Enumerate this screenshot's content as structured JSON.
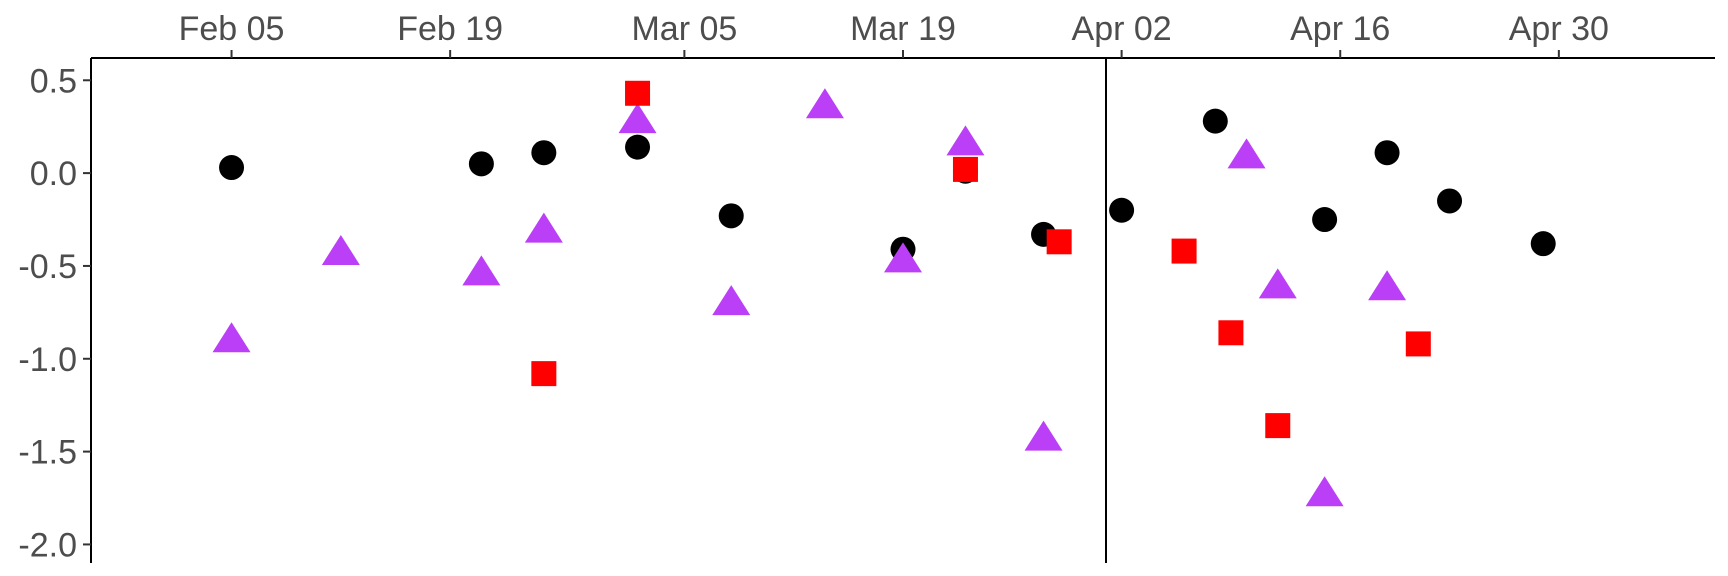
{
  "chart_data": {
    "type": "scatter",
    "title": "",
    "xlabel": "",
    "ylabel": "",
    "x_axis": {
      "position": "top",
      "type": "date",
      "domain": [
        "2024-01-27",
        "2024-05-10"
      ],
      "ticks": [
        {
          "date": "2024-02-05",
          "label": "Feb 05"
        },
        {
          "date": "2024-02-19",
          "label": "Feb 19"
        },
        {
          "date": "2024-03-05",
          "label": "Mar 05"
        },
        {
          "date": "2024-03-19",
          "label": "Mar 19"
        },
        {
          "date": "2024-04-02",
          "label": "Apr 02"
        },
        {
          "date": "2024-04-16",
          "label": "Apr 16"
        },
        {
          "date": "2024-04-30",
          "label": "Apr 30"
        }
      ]
    },
    "y_axis": {
      "ylim": [
        -2.1,
        0.62
      ],
      "ticks": [
        {
          "value": 0.5,
          "label": "0.5"
        },
        {
          "value": 0.0,
          "label": "0.0"
        },
        {
          "value": -0.5,
          "label": "-0.5"
        },
        {
          "value": -1.0,
          "label": "-1.0"
        },
        {
          "value": -1.5,
          "label": "-1.5"
        },
        {
          "value": -2.0,
          "label": "-2.0"
        }
      ]
    },
    "reference_line": {
      "date": "2024-04-01"
    },
    "grid": false,
    "legend": "none",
    "series": [
      {
        "marker": "circle",
        "color": "#000000",
        "points": [
          {
            "x": "2024-02-05",
            "y": 0.03
          },
          {
            "x": "2024-02-21",
            "y": 0.05
          },
          {
            "x": "2024-02-25",
            "y": 0.11
          },
          {
            "x": "2024-03-02",
            "y": 0.14
          },
          {
            "x": "2024-03-08",
            "y": -0.23
          },
          {
            "x": "2024-03-19",
            "y": -0.41
          },
          {
            "x": "2024-03-23",
            "y": 0.01
          },
          {
            "x": "2024-03-28",
            "y": -0.33
          },
          {
            "x": "2024-04-02",
            "y": -0.2
          },
          {
            "x": "2024-04-08",
            "y": 0.28
          },
          {
            "x": "2024-04-15",
            "y": -0.25
          },
          {
            "x": "2024-04-19",
            "y": 0.11
          },
          {
            "x": "2024-04-23",
            "y": -0.15
          },
          {
            "x": "2024-04-29",
            "y": -0.38
          }
        ]
      },
      {
        "marker": "triangle",
        "color": "#bb3ff7",
        "points": [
          {
            "x": "2024-02-05",
            "y": -0.9
          },
          {
            "x": "2024-02-12",
            "y": -0.43
          },
          {
            "x": "2024-02-21",
            "y": -0.54
          },
          {
            "x": "2024-02-25",
            "y": -0.31
          },
          {
            "x": "2024-03-02",
            "y": 0.28
          },
          {
            "x": "2024-03-08",
            "y": -0.7
          },
          {
            "x": "2024-03-14",
            "y": 0.36
          },
          {
            "x": "2024-03-19",
            "y": -0.47
          },
          {
            "x": "2024-03-23",
            "y": 0.16
          },
          {
            "x": "2024-03-28",
            "y": -1.43
          },
          {
            "x": "2024-04-10",
            "y": 0.09
          },
          {
            "x": "2024-04-12",
            "y": -0.61
          },
          {
            "x": "2024-04-15",
            "y": -1.73
          },
          {
            "x": "2024-04-19",
            "y": -0.62
          }
        ]
      },
      {
        "marker": "square",
        "color": "#ff0000",
        "points": [
          {
            "x": "2024-02-25",
            "y": -1.08
          },
          {
            "x": "2024-03-02",
            "y": 0.43
          },
          {
            "x": "2024-03-23",
            "y": 0.02
          },
          {
            "x": "2024-03-29",
            "y": -0.37
          },
          {
            "x": "2024-04-06",
            "y": -0.42
          },
          {
            "x": "2024-04-09",
            "y": -0.86
          },
          {
            "x": "2024-04-12",
            "y": -1.36
          },
          {
            "x": "2024-04-21",
            "y": -0.92
          }
        ]
      }
    ]
  }
}
